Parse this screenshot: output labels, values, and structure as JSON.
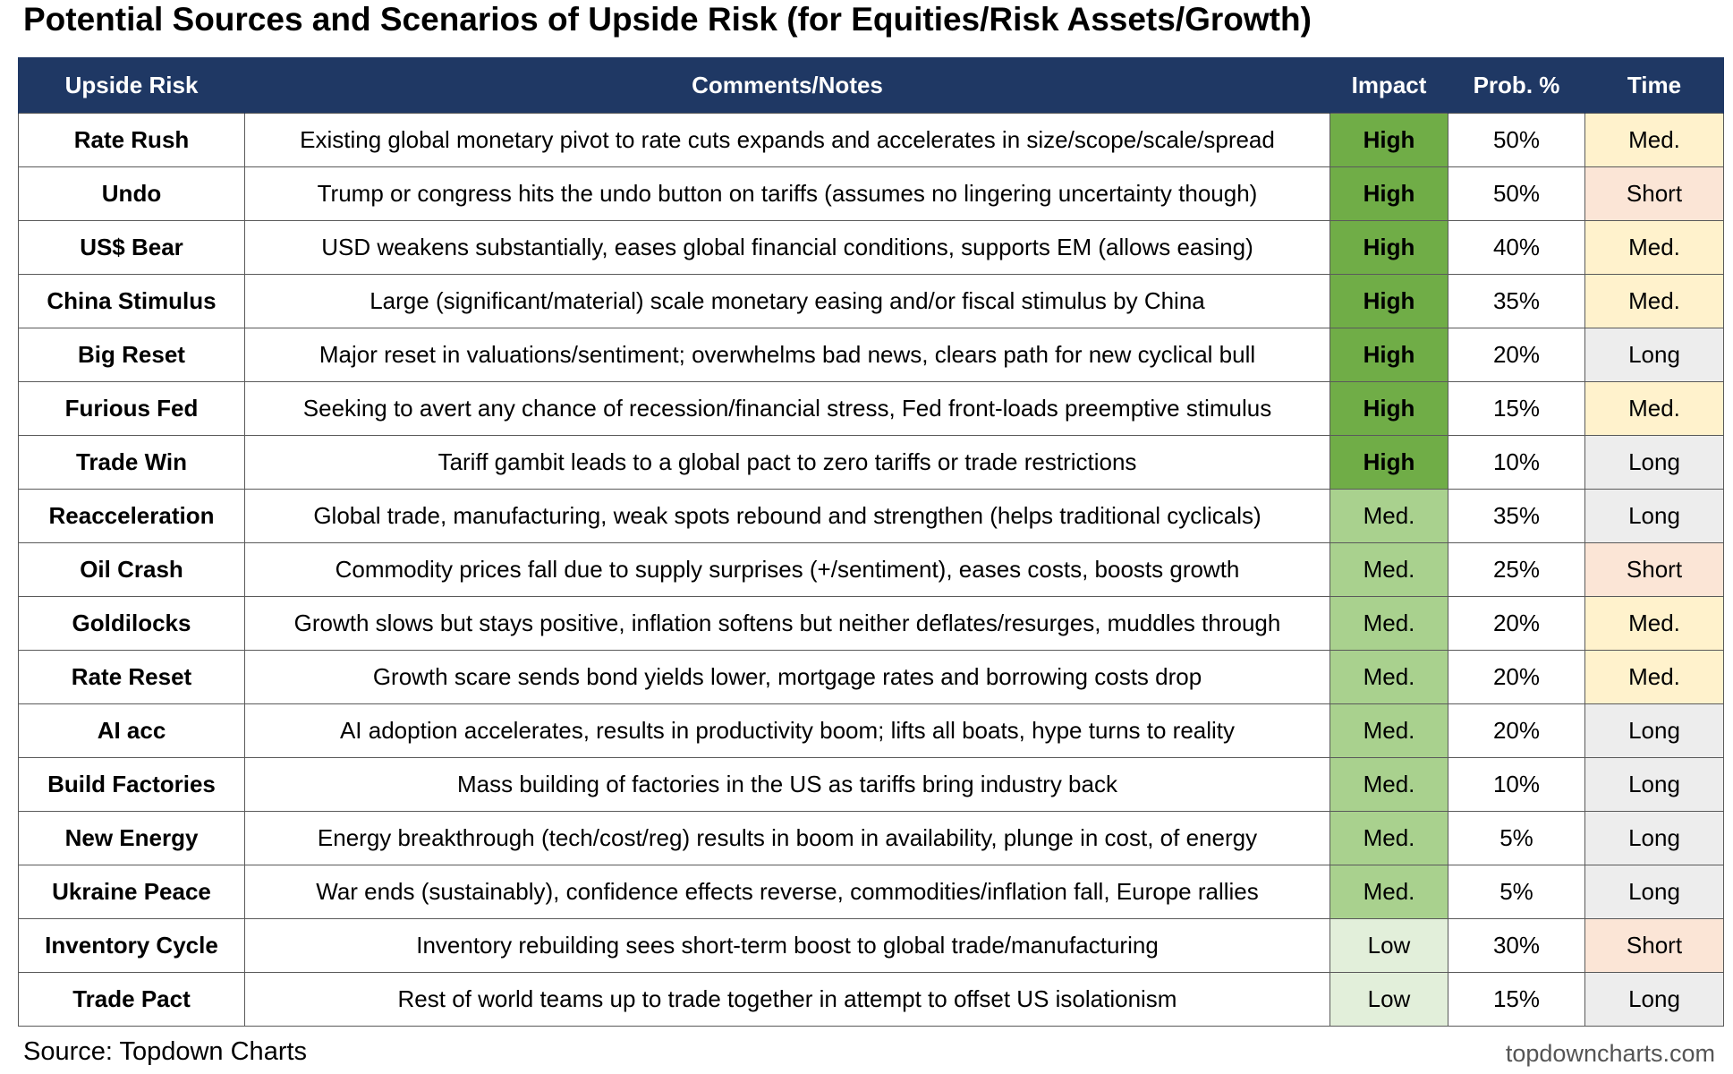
{
  "title": "Potential Sources and Scenarios of Upside Risk (for Equities/Risk Assets/Growth)",
  "columns": [
    "Upside Risk",
    "Comments/Notes",
    "Impact",
    "Prob. %",
    "Time"
  ],
  "colors": {
    "header_bg": "#1f3864",
    "impact_high": "#70ad47",
    "impact_med": "#a9d18e",
    "impact_low": "#e2efda",
    "time_med": "#fff2cc",
    "time_short": "#fbe5d6",
    "time_long": "#ededed"
  },
  "rows": [
    {
      "risk": "Rate Rush",
      "notes": "Existing global monetary pivot to rate cuts expands and accelerates in size/scope/scale/spread",
      "impact": "High",
      "prob": "50%",
      "time": "Med."
    },
    {
      "risk": "Undo",
      "notes": "Trump or congress hits the undo button on tariffs (assumes no lingering uncertainty though)",
      "impact": "High",
      "prob": "50%",
      "time": "Short"
    },
    {
      "risk": "US$ Bear",
      "notes": "USD weakens substantially, eases global financial conditions, supports EM (allows easing)",
      "impact": "High",
      "prob": "40%",
      "time": "Med."
    },
    {
      "risk": "China Stimulus",
      "notes": "Large (significant/material) scale monetary easing and/or fiscal stimulus by China",
      "impact": "High",
      "prob": "35%",
      "time": "Med."
    },
    {
      "risk": "Big Reset",
      "notes": "Major reset in valuations/sentiment; overwhelms bad news, clears path for new cyclical bull",
      "impact": "High",
      "prob": "20%",
      "time": "Long"
    },
    {
      "risk": "Furious Fed",
      "notes": "Seeking to avert any chance of recession/financial stress, Fed front-loads preemptive stimulus",
      "impact": "High",
      "prob": "15%",
      "time": "Med."
    },
    {
      "risk": "Trade Win",
      "notes": "Tariff gambit leads to a global pact to zero tariffs or trade restrictions",
      "impact": "High",
      "prob": "10%",
      "time": "Long"
    },
    {
      "risk": "Reacceleration",
      "notes": "Global trade, manufacturing, weak spots rebound and strengthen (helps traditional cyclicals)",
      "impact": "Med.",
      "prob": "35%",
      "time": "Long"
    },
    {
      "risk": "Oil Crash",
      "notes": "Commodity prices fall due to supply surprises (+/sentiment), eases costs, boosts growth",
      "impact": "Med.",
      "prob": "25%",
      "time": "Short"
    },
    {
      "risk": "Goldilocks",
      "notes": "Growth slows but stays positive, inflation softens but neither deflates/resurges, muddles through",
      "impact": "Med.",
      "prob": "20%",
      "time": "Med."
    },
    {
      "risk": "Rate Reset",
      "notes": "Growth scare sends bond yields lower, mortgage rates and borrowing costs drop",
      "impact": "Med.",
      "prob": "20%",
      "time": "Med."
    },
    {
      "risk": "AI acc",
      "notes": "AI adoption accelerates, results in productivity boom; lifts all boats, hype turns to reality",
      "impact": "Med.",
      "prob": "20%",
      "time": "Long"
    },
    {
      "risk": "Build Factories",
      "notes": "Mass building of factories in the US as tariffs bring industry back",
      "impact": "Med.",
      "prob": "10%",
      "time": "Long"
    },
    {
      "risk": "New Energy",
      "notes": "Energy breakthrough (tech/cost/reg) results in boom in availability, plunge in cost, of energy",
      "impact": "Med.",
      "prob": "5%",
      "time": "Long"
    },
    {
      "risk": "Ukraine Peace",
      "notes": "War ends (sustainably), confidence effects reverse, commodities/inflation fall, Europe rallies",
      "impact": "Med.",
      "prob": "5%",
      "time": "Long"
    },
    {
      "risk": "Inventory Cycle",
      "notes": "Inventory rebuilding sees short-term boost to global trade/manufacturing",
      "impact": "Low",
      "prob": "30%",
      "time": "Short"
    },
    {
      "risk": "Trade Pact",
      "notes": "Rest of world teams up to trade together in attempt to offset US isolationism",
      "impact": "Low",
      "prob": "15%",
      "time": "Long"
    }
  ],
  "source": "Source: Topdown Charts",
  "brand": "topdowncharts.com"
}
